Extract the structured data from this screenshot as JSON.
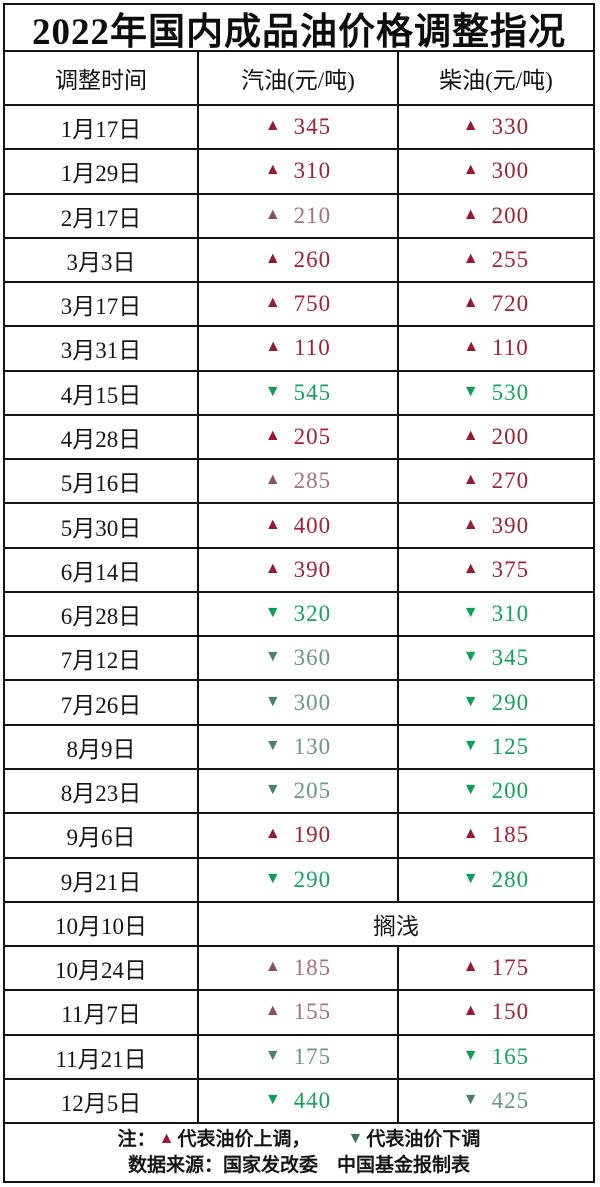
{
  "title": "2022年国内成品油价格调整指况",
  "icons": {
    "up": "▲",
    "down": "▼"
  },
  "colors": {
    "border": "#141414",
    "up_red": "#951b31",
    "up_red_muted": "#8a5360",
    "down_green": "#0f9c57",
    "down_green_muted": "#4c8168",
    "text": "#111111",
    "background": "#ffffff"
  },
  "table": {
    "headers": [
      "调整时间",
      "汽油(元/吨)",
      "柴油(元/吨)"
    ],
    "rows": [
      {
        "date": "1月17日",
        "gas": {
          "dir": "up",
          "value": "345",
          "muted": false
        },
        "diesel": {
          "dir": "up",
          "value": "330",
          "muted": false
        }
      },
      {
        "date": "1月29日",
        "gas": {
          "dir": "up",
          "value": "310",
          "muted": false
        },
        "diesel": {
          "dir": "up",
          "value": "300",
          "muted": false
        }
      },
      {
        "date": "2月17日",
        "gas": {
          "dir": "up",
          "value": "210",
          "muted": true
        },
        "diesel": {
          "dir": "up",
          "value": "200",
          "muted": false
        }
      },
      {
        "date": "3月3日",
        "gas": {
          "dir": "up",
          "value": "260",
          "muted": false
        },
        "diesel": {
          "dir": "up",
          "value": "255",
          "muted": false
        }
      },
      {
        "date": "3月17日",
        "gas": {
          "dir": "up",
          "value": "750",
          "muted": false
        },
        "diesel": {
          "dir": "up",
          "value": "720",
          "muted": false
        }
      },
      {
        "date": "3月31日",
        "gas": {
          "dir": "up",
          "value": "110",
          "muted": false
        },
        "diesel": {
          "dir": "up",
          "value": "110",
          "muted": false
        }
      },
      {
        "date": "4月15日",
        "gas": {
          "dir": "down",
          "value": "545",
          "muted": false
        },
        "diesel": {
          "dir": "down",
          "value": "530",
          "muted": false
        }
      },
      {
        "date": "4月28日",
        "gas": {
          "dir": "up",
          "value": "205",
          "muted": false
        },
        "diesel": {
          "dir": "up",
          "value": "200",
          "muted": false
        }
      },
      {
        "date": "5月16日",
        "gas": {
          "dir": "up",
          "value": "285",
          "muted": true
        },
        "diesel": {
          "dir": "up",
          "value": "270",
          "muted": false
        }
      },
      {
        "date": "5月30日",
        "gas": {
          "dir": "up",
          "value": "400",
          "muted": false
        },
        "diesel": {
          "dir": "up",
          "value": "390",
          "muted": false
        }
      },
      {
        "date": "6月14日",
        "gas": {
          "dir": "up",
          "value": "390",
          "muted": false
        },
        "diesel": {
          "dir": "up",
          "value": "375",
          "muted": false
        }
      },
      {
        "date": "6月28日",
        "gas": {
          "dir": "down",
          "value": "320",
          "muted": false
        },
        "diesel": {
          "dir": "down",
          "value": "310",
          "muted": false
        }
      },
      {
        "date": "7月12日",
        "gas": {
          "dir": "down",
          "value": "360",
          "muted": true
        },
        "diesel": {
          "dir": "down",
          "value": "345",
          "muted": false
        }
      },
      {
        "date": "7月26日",
        "gas": {
          "dir": "down",
          "value": "300",
          "muted": true
        },
        "diesel": {
          "dir": "down",
          "value": "290",
          "muted": false
        }
      },
      {
        "date": "8月9日",
        "gas": {
          "dir": "down",
          "value": "130",
          "muted": true
        },
        "diesel": {
          "dir": "down",
          "value": "125",
          "muted": false
        }
      },
      {
        "date": "8月23日",
        "gas": {
          "dir": "down",
          "value": "205",
          "muted": true
        },
        "diesel": {
          "dir": "down",
          "value": "200",
          "muted": false
        }
      },
      {
        "date": "9月6日",
        "gas": {
          "dir": "up",
          "value": "190",
          "muted": false
        },
        "diesel": {
          "dir": "up",
          "value": "185",
          "muted": false
        }
      },
      {
        "date": "9月21日",
        "gas": {
          "dir": "down",
          "value": "290",
          "muted": false
        },
        "diesel": {
          "dir": "down",
          "value": "280",
          "muted": false
        }
      },
      {
        "date": "10月10日",
        "merged": "搁浅"
      },
      {
        "date": "10月24日",
        "gas": {
          "dir": "up",
          "value": "185",
          "muted": true
        },
        "diesel": {
          "dir": "up",
          "value": "175",
          "muted": false
        }
      },
      {
        "date": "11月7日",
        "gas": {
          "dir": "up",
          "value": "155",
          "muted": true
        },
        "diesel": {
          "dir": "up",
          "value": "150",
          "muted": false
        }
      },
      {
        "date": "11月21日",
        "gas": {
          "dir": "down",
          "value": "175",
          "muted": true
        },
        "diesel": {
          "dir": "down",
          "value": "165",
          "muted": false
        }
      },
      {
        "date": "12月5日",
        "gas": {
          "dir": "down",
          "value": "440",
          "muted": false
        },
        "diesel": {
          "dir": "down",
          "value": "425",
          "muted": true
        }
      }
    ]
  },
  "footer": {
    "note_prefix": "注：",
    "up_text": "代表油价上调，",
    "down_text": "代表油价下调",
    "source": "数据来源：国家发改委　中国基金报制表"
  },
  "chart_data": {
    "type": "table",
    "title": "2022年国内成品油价格调整指况",
    "columns": [
      "调整时间",
      "汽油(元/吨)",
      "柴油(元/吨)"
    ],
    "rows": [
      {
        "date": "1月17日",
        "gasoline": 345,
        "diesel": 330
      },
      {
        "date": "1月29日",
        "gasoline": 310,
        "diesel": 300
      },
      {
        "date": "2月17日",
        "gasoline": 210,
        "diesel": 200
      },
      {
        "date": "3月3日",
        "gasoline": 260,
        "diesel": 255
      },
      {
        "date": "3月17日",
        "gasoline": 750,
        "diesel": 720
      },
      {
        "date": "3月31日",
        "gasoline": 110,
        "diesel": 110
      },
      {
        "date": "4月15日",
        "gasoline": -545,
        "diesel": -530
      },
      {
        "date": "4月28日",
        "gasoline": 205,
        "diesel": 200
      },
      {
        "date": "5月16日",
        "gasoline": 285,
        "diesel": 270
      },
      {
        "date": "5月30日",
        "gasoline": 400,
        "diesel": 390
      },
      {
        "date": "6月14日",
        "gasoline": 390,
        "diesel": 375
      },
      {
        "date": "6月28日",
        "gasoline": -320,
        "diesel": -310
      },
      {
        "date": "7月12日",
        "gasoline": -360,
        "diesel": -345
      },
      {
        "date": "7月26日",
        "gasoline": -300,
        "diesel": -290
      },
      {
        "date": "8月9日",
        "gasoline": -130,
        "diesel": -125
      },
      {
        "date": "8月23日",
        "gasoline": -205,
        "diesel": -200
      },
      {
        "date": "9月6日",
        "gasoline": 190,
        "diesel": 185
      },
      {
        "date": "9月21日",
        "gasoline": -290,
        "diesel": -280
      },
      {
        "date": "10月10日",
        "gasoline": "搁浅",
        "diesel": "搁浅"
      },
      {
        "date": "10月24日",
        "gasoline": 185,
        "diesel": 175
      },
      {
        "date": "11月7日",
        "gasoline": 155,
        "diesel": 150
      },
      {
        "date": "11月21日",
        "gasoline": -175,
        "diesel": -165
      },
      {
        "date": "12月5日",
        "gasoline": -440,
        "diesel": -425
      }
    ],
    "legend": "▲代表油价上调 ▼代表油价下调",
    "source": "国家发改委 / 中国基金报制表"
  }
}
